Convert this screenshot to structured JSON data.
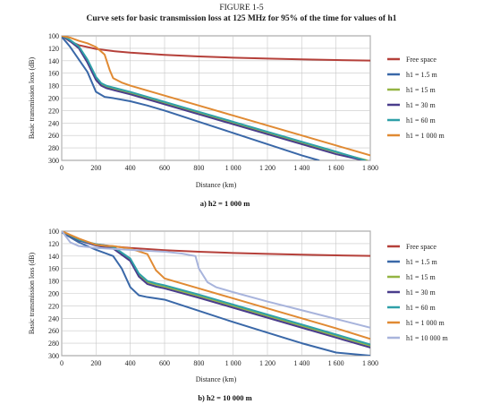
{
  "figure": {
    "label": "FIGURE 1-5",
    "title": "Curve sets for basic transmission loss at 125 MHz for 95% of the time for values of h1"
  },
  "colors": {
    "free_space": "#b5403a",
    "h1_1_5": "#3a68a8",
    "h1_15": "#94b443",
    "h1_30": "#4a3d8c",
    "h1_60": "#2fa0a8",
    "h1_1000": "#e08a33",
    "h1_10000": "#a8b4dc"
  },
  "chart_data": [
    {
      "type": "line",
      "caption": "a) h2 = 1 000 m",
      "xlabel": "Distance (km)",
      "ylabel": "Basic transmission loss (dB)",
      "xlim": [
        0,
        1800
      ],
      "ylim": [
        100,
        300
      ],
      "y_inverted": true,
      "xticks": [
        0,
        200,
        400,
        600,
        800,
        1000,
        1200,
        1400,
        1600,
        1800
      ],
      "xtick_labels": [
        "0",
        "200",
        "400",
        "600",
        "800",
        "1 000",
        "1 200",
        "1 400",
        "1 600",
        "1 800"
      ],
      "yticks": [
        100,
        120,
        140,
        160,
        180,
        200,
        220,
        240,
        260,
        280,
        300
      ],
      "grid": true,
      "legend_position": "right",
      "series": [
        {
          "name": "Free space",
          "color_key": "free_space",
          "x": [
            1,
            50,
            100,
            200,
            300,
            400,
            600,
            800,
            1000,
            1200,
            1400,
            1600,
            1800
          ],
          "y": [
            100,
            109,
            115,
            121,
            124.5,
            127,
            130.5,
            133,
            135,
            136.5,
            137.7,
            138.8,
            139.8
          ]
        },
        {
          "name": "h1 = 1.5 m",
          "color_key": "h1_1_5",
          "x": [
            1,
            20,
            50,
            100,
            150,
            200,
            250,
            300,
            400,
            500,
            600,
            800,
            1000,
            1200,
            1400,
            1500
          ],
          "y": [
            102,
            108,
            118,
            138,
            158,
            190,
            198,
            200,
            205,
            212,
            220,
            238,
            256,
            274,
            292,
            300
          ]
        },
        {
          "name": "h1 = 15 m",
          "color_key": "h1_15",
          "x": [
            1,
            20,
            50,
            100,
            150,
            200,
            230,
            260,
            300,
            400,
            600,
            800,
            1000,
            1200,
            1400,
            1600,
            1780
          ],
          "y": [
            100,
            103,
            108,
            118,
            140,
            168,
            178,
            182,
            185,
            192,
            208,
            224,
            240,
            256,
            272,
            287,
            300
          ]
        },
        {
          "name": "h1 = 30 m",
          "color_key": "h1_30",
          "x": [
            1,
            20,
            50,
            100,
            150,
            200,
            230,
            260,
            300,
            400,
            600,
            800,
            1000,
            1200,
            1400,
            1600,
            1760
          ],
          "y": [
            100,
            103,
            109,
            120,
            143,
            171,
            180,
            184,
            187,
            194,
            210,
            226,
            242,
            258,
            274,
            290,
            300
          ]
        },
        {
          "name": "h1 = 60 m",
          "color_key": "h1_60",
          "x": [
            1,
            20,
            50,
            100,
            150,
            200,
            230,
            260,
            300,
            400,
            600,
            800,
            1000,
            1200,
            1400,
            1600,
            1770
          ],
          "y": [
            100,
            102,
            107,
            117,
            138,
            166,
            176,
            180,
            183,
            190,
            206,
            222,
            238,
            254,
            270,
            286,
            300
          ]
        },
        {
          "name": "h1 = 1 000 m",
          "color_key": "h1_1000",
          "x": [
            1,
            50,
            100,
            150,
            200,
            250,
            280,
            300,
            350,
            400,
            600,
            800,
            1000,
            1200,
            1400,
            1600,
            1800
          ],
          "y": [
            100,
            103,
            108,
            112,
            118,
            130,
            155,
            168,
            175,
            180,
            196,
            212,
            228,
            244,
            260,
            276,
            292
          ]
        }
      ]
    },
    {
      "type": "line",
      "caption": "b) h2 = 10 000 m",
      "xlabel": "Distance (km)",
      "ylabel": "Basic transmission loss (dB)",
      "xlim": [
        0,
        1800
      ],
      "ylim": [
        100,
        300
      ],
      "y_inverted": true,
      "xticks": [
        0,
        200,
        400,
        600,
        800,
        1000,
        1200,
        1400,
        1600,
        1800
      ],
      "xtick_labels": [
        "0",
        "200",
        "400",
        "600",
        "800",
        "1 000",
        "1 200",
        "1 400",
        "1 600",
        "1 800"
      ],
      "yticks": [
        100,
        120,
        140,
        160,
        180,
        200,
        220,
        240,
        260,
        280,
        300
      ],
      "grid": true,
      "legend_position": "right",
      "series": [
        {
          "name": "Free space",
          "color_key": "free_space",
          "x": [
            1,
            50,
            100,
            200,
            300,
            400,
            600,
            800,
            1000,
            1200,
            1400,
            1600,
            1800
          ],
          "y": [
            100,
            109,
            115,
            121,
            124.5,
            127,
            130.5,
            133,
            135,
            136.5,
            137.7,
            138.8,
            139.8
          ]
        },
        {
          "name": "h1 = 1.5 m",
          "color_key": "h1_1_5",
          "x": [
            1,
            50,
            100,
            200,
            300,
            350,
            400,
            450,
            500,
            600,
            800,
            1000,
            1200,
            1400,
            1600,
            1800
          ],
          "y": [
            102,
            110,
            118,
            130,
            140,
            160,
            190,
            203,
            206,
            210,
            228,
            246,
            263,
            280,
            295,
            300
          ]
        },
        {
          "name": "h1 = 15 m",
          "color_key": "h1_15",
          "x": [
            1,
            50,
            100,
            200,
            300,
            400,
            450,
            500,
            550,
            600,
            800,
            1000,
            1200,
            1400,
            1600,
            1800
          ],
          "y": [
            100,
            108,
            115,
            122,
            126,
            145,
            170,
            182,
            186,
            189,
            204,
            220,
            236,
            252,
            268,
            284
          ]
        },
        {
          "name": "h1 = 30 m",
          "color_key": "h1_30",
          "x": [
            1,
            50,
            100,
            200,
            300,
            400,
            450,
            500,
            550,
            600,
            800,
            1000,
            1200,
            1400,
            1600,
            1800
          ],
          "y": [
            100,
            108,
            115,
            123,
            128,
            148,
            173,
            185,
            189,
            192,
            207,
            223,
            239,
            255,
            271,
            287
          ]
        },
        {
          "name": "h1 = 60 m",
          "color_key": "h1_60",
          "x": [
            1,
            50,
            100,
            200,
            300,
            400,
            450,
            500,
            550,
            600,
            800,
            1000,
            1200,
            1400,
            1600,
            1800
          ],
          "y": [
            100,
            107,
            114,
            121,
            125,
            144,
            168,
            180,
            184,
            187,
            202,
            218,
            234,
            250,
            266,
            282
          ]
        },
        {
          "name": "h1 = 1 000 m",
          "color_key": "h1_1000",
          "x": [
            1,
            50,
            100,
            200,
            260,
            300,
            400,
            500,
            550,
            600,
            800,
            1000,
            1200,
            1400,
            1600,
            1800
          ],
          "y": [
            100,
            106,
            112,
            122,
            124,
            124,
            128,
            137,
            163,
            176,
            192,
            208,
            224,
            240,
            256,
            273
          ]
        },
        {
          "name": "h1 = 10 000 m",
          "color_key": "h1_10000",
          "x": [
            1,
            50,
            100,
            200,
            400,
            600,
            700,
            780,
            800,
            850,
            900,
            1000,
            1200,
            1400,
            1600,
            1800
          ],
          "y": [
            100,
            118,
            124,
            127,
            130,
            133,
            136,
            140,
            160,
            182,
            190,
            198,
            213,
            227,
            241,
            255
          ]
        }
      ]
    }
  ]
}
